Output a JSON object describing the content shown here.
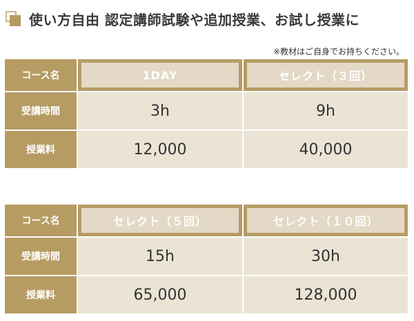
{
  "heading": {
    "title": "使い方自由  認定講師試験や追加授業、お試し授業に"
  },
  "note": "※教材はご自身でお持ちください。",
  "tables": [
    {
      "row_headers": [
        "コース名",
        "受講時間",
        "授業料"
      ],
      "courses": [
        {
          "name": "1DAY",
          "hours": "3h",
          "fee": "12,000"
        },
        {
          "name": "セレクト（３回）",
          "hours": "9h",
          "fee": "40,000"
        }
      ]
    },
    {
      "row_headers": [
        "コース名",
        "受講時間",
        "授業料"
      ],
      "courses": [
        {
          "name": "セレクト（５回）",
          "hours": "15h",
          "fee": "65,000"
        },
        {
          "name": "セレクト（１０回）",
          "hours": "30h",
          "fee": "128,000"
        }
      ]
    }
  ],
  "colors": {
    "header_gold": "#b69c63",
    "course_label_bg": "#e3d9c6",
    "cell_bg": "#ebe4d5",
    "title_square": "#b59b61"
  }
}
